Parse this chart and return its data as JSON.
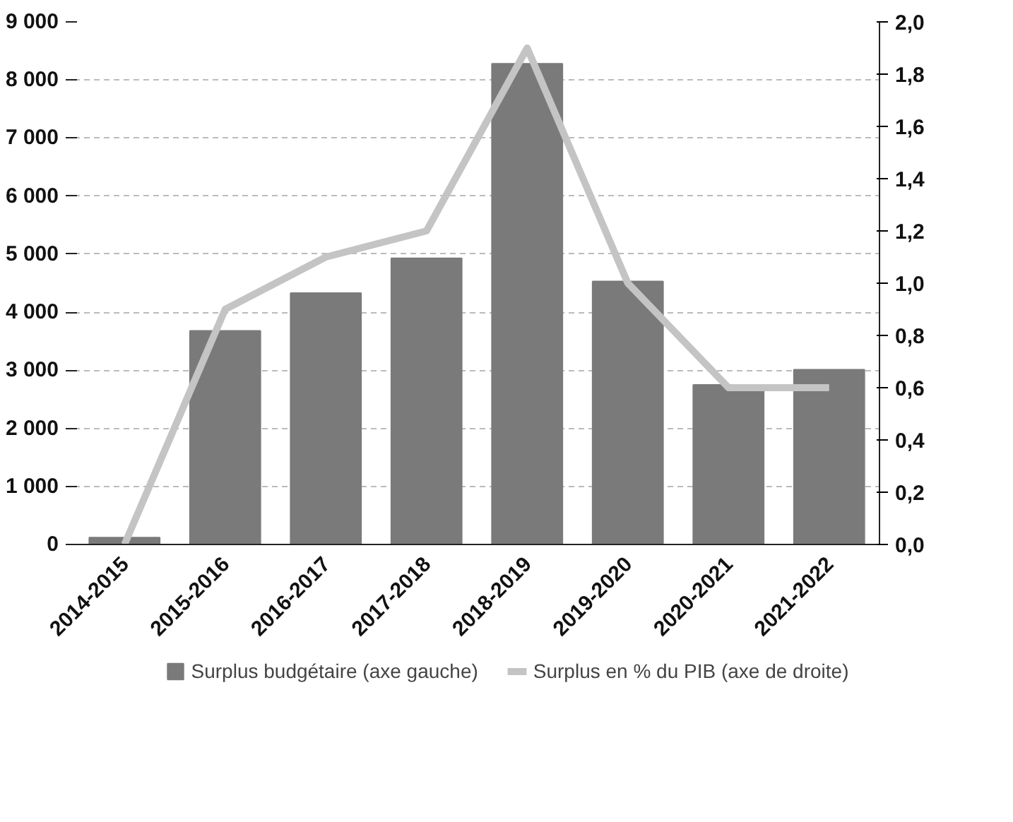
{
  "chart_data": {
    "type": "bar",
    "categories": [
      "2014-2015",
      "2015-2016",
      "2016-2017",
      "2017-2018",
      "2018-2019",
      "2019-2020",
      "2020-2021",
      "2021-2022"
    ],
    "series": [
      {
        "name": "Surplus budgétaire (axe gauche)",
        "color": "#7a7a7a",
        "values": [
          120,
          3680,
          4330,
          4930,
          8280,
          4530,
          2750,
          3010
        ]
      },
      {
        "name": "Surplus en % du PIB (axe de droite)",
        "type": "line",
        "axis": "y2",
        "color": "#c4c4c4",
        "values": [
          0.0,
          0.9,
          1.1,
          1.2,
          1.9,
          1.0,
          0.6,
          0.6
        ]
      }
    ],
    "ylim": [
      0,
      9000
    ],
    "yticks": [
      {
        "value": 0,
        "label": "0"
      },
      {
        "value": 1000,
        "label": "1 000"
      },
      {
        "value": 2000,
        "label": "2 000"
      },
      {
        "value": 3000,
        "label": "3 000"
      },
      {
        "value": 4000,
        "label": "4 000"
      },
      {
        "value": 5000,
        "label": "5 000"
      },
      {
        "value": 6000,
        "label": "6 000"
      },
      {
        "value": 7000,
        "label": "7 000"
      },
      {
        "value": 8000,
        "label": "8 000"
      },
      {
        "value": 9000,
        "label": "9 000"
      }
    ],
    "y2lim": [
      0,
      2.0
    ],
    "y2ticks": [
      {
        "value": 0,
        "label": "0,0"
      },
      {
        "value": 0.2,
        "label": "0,2"
      },
      {
        "value": 0.4,
        "label": "0,4"
      },
      {
        "value": 0.6,
        "label": "0,6"
      },
      {
        "value": 0.8,
        "label": "0,8"
      },
      {
        "value": 1.0,
        "label": "1,0"
      },
      {
        "value": 1.2,
        "label": "1,2"
      },
      {
        "value": 1.4,
        "label": "1,4"
      },
      {
        "value": 1.6,
        "label": "1,6"
      },
      {
        "value": 1.8,
        "label": "1,8"
      },
      {
        "value": 2.0,
        "label": "2,0"
      }
    ],
    "grid": "y",
    "legend": "bottom",
    "line_style": "solid"
  }
}
